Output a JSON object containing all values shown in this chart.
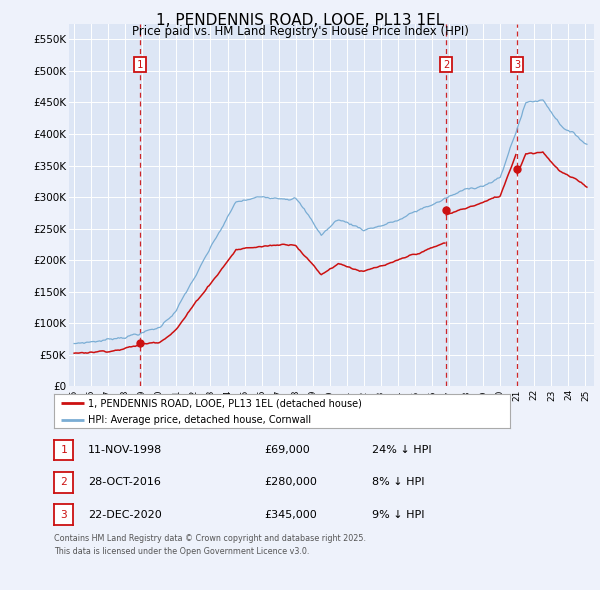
{
  "title": "1, PENDENNIS ROAD, LOOE, PL13 1EL",
  "subtitle": "Price paid vs. HM Land Registry's House Price Index (HPI)",
  "title_fontsize": 11,
  "subtitle_fontsize": 8.5,
  "background_color": "#eef2fb",
  "plot_bg_color": "#dde6f5",
  "grid_color": "#ffffff",
  "ylabel_ticks": [
    "£0",
    "£50K",
    "£100K",
    "£150K",
    "£200K",
    "£250K",
    "£300K",
    "£350K",
    "£400K",
    "£450K",
    "£500K",
    "£550K"
  ],
  "ytick_values": [
    0,
    50000,
    100000,
    150000,
    200000,
    250000,
    300000,
    350000,
    400000,
    450000,
    500000,
    550000
  ],
  "ylim": [
    0,
    575000
  ],
  "xlim_start": 1994.7,
  "xlim_end": 2025.5,
  "sale1": {
    "num": 1,
    "year": 1998.87,
    "price": 69000,
    "date": "11-NOV-1998",
    "pct": "24%",
    "dir": "↓"
  },
  "sale2": {
    "num": 2,
    "year": 2016.83,
    "price": 280000,
    "date": "28-OCT-2016",
    "pct": "8%",
    "dir": "↓"
  },
  "sale3": {
    "num": 3,
    "year": 2020.98,
    "price": 345000,
    "date": "22-DEC-2020",
    "pct": "9%",
    "dir": "↓"
  },
  "red_line_color": "#cc1111",
  "blue_line_color": "#7aadd4",
  "dashed_line_color": "#cc1111",
  "annotation_box_color": "#cc1111",
  "legend_label_red": "1, PENDENNIS ROAD, LOOE, PL13 1EL (detached house)",
  "legend_label_blue": "HPI: Average price, detached house, Cornwall",
  "footnote1": "Contains HM Land Registry data © Crown copyright and database right 2025.",
  "footnote2": "This data is licensed under the Open Government Licence v3.0.",
  "table_rows": [
    {
      "num": 1,
      "date": "11-NOV-1998",
      "price": "£69,000",
      "pct": "24% ↓ HPI"
    },
    {
      "num": 2,
      "date": "28-OCT-2016",
      "price": "£280,000",
      "pct": "8% ↓ HPI"
    },
    {
      "num": 3,
      "date": "22-DEC-2020",
      "price": "£345,000",
      "pct": "9% ↓ HPI"
    }
  ]
}
